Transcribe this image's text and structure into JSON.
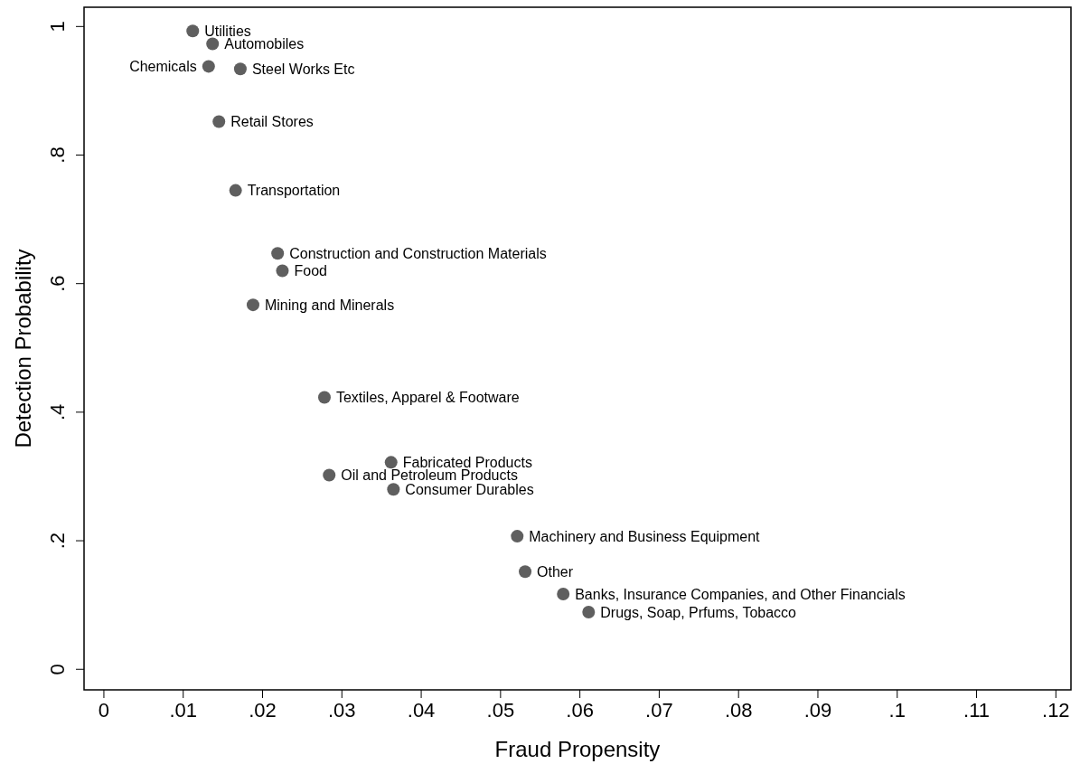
{
  "chart_data": {
    "type": "scatter",
    "xlabel": "Fraud Propensity",
    "ylabel": "Detection Probability",
    "xlim": [
      -0.0025,
      0.1219
    ],
    "ylim": [
      -0.032,
      1.03
    ],
    "xticks": [
      {
        "value": 0,
        "label": "0"
      },
      {
        "value": 0.01,
        "label": ".01"
      },
      {
        "value": 0.02,
        "label": ".02"
      },
      {
        "value": 0.03,
        "label": ".03"
      },
      {
        "value": 0.04,
        "label": ".04"
      },
      {
        "value": 0.05,
        "label": ".05"
      },
      {
        "value": 0.06,
        "label": ".06"
      },
      {
        "value": 0.07,
        "label": ".07"
      },
      {
        "value": 0.08,
        "label": ".08"
      },
      {
        "value": 0.09,
        "label": ".09"
      },
      {
        "value": 0.1,
        "label": ".1"
      },
      {
        "value": 0.11,
        "label": ".11"
      },
      {
        "value": 0.12,
        "label": ".12"
      }
    ],
    "yticks": [
      {
        "value": 0,
        "label": "0"
      },
      {
        "value": 0.2,
        "label": ".2"
      },
      {
        "value": 0.4,
        "label": ".4"
      },
      {
        "value": 0.6,
        "label": ".6"
      },
      {
        "value": 0.8,
        "label": ".8"
      },
      {
        "value": 1,
        "label": "1"
      }
    ],
    "grid": false,
    "marker": "circle",
    "series": [
      {
        "color": "#5f5f5f",
        "x": [
          0.0112,
          0.0137,
          0.0132,
          0.0172,
          0.0145,
          0.0166,
          0.0219,
          0.0225,
          0.0188,
          0.0278,
          0.0362,
          0.0284,
          0.0365,
          0.0521,
          0.0531,
          0.0579,
          0.0611
        ],
        "values": [
          0.993,
          0.973,
          0.938,
          0.934,
          0.852,
          0.745,
          0.647,
          0.62,
          0.567,
          0.423,
          0.322,
          0.302,
          0.28,
          0.207,
          0.152,
          0.117,
          0.089
        ]
      }
    ],
    "annotations": [
      {
        "text": "Utilities",
        "x": 0.0112,
        "y": 0.993
      },
      {
        "text": "Automobiles",
        "x": 0.0137,
        "y": 0.973
      },
      {
        "text": "Chemicals",
        "x": 0.0132,
        "y": 0.938
      },
      {
        "text": "Steel Works Etc",
        "x": 0.0172,
        "y": 0.934
      },
      {
        "text": "Retail Stores",
        "x": 0.0145,
        "y": 0.852
      },
      {
        "text": "Transportation",
        "x": 0.0166,
        "y": 0.745
      },
      {
        "text": "Construction and Construction Materials",
        "x": 0.0219,
        "y": 0.647
      },
      {
        "text": "Food",
        "x": 0.0225,
        "y": 0.62
      },
      {
        "text": "Mining and Minerals",
        "x": 0.0188,
        "y": 0.567
      },
      {
        "text": "Textiles, Apparel & Footware",
        "x": 0.0278,
        "y": 0.423
      },
      {
        "text": "Fabricated Products",
        "x": 0.0362,
        "y": 0.322
      },
      {
        "text": "Oil and Petroleum Products",
        "x": 0.0284,
        "y": 0.302
      },
      {
        "text": "Consumer Durables",
        "x": 0.0365,
        "y": 0.28
      },
      {
        "text": "Machinery and Business Equipment",
        "x": 0.0521,
        "y": 0.207
      },
      {
        "text": "Other",
        "x": 0.0531,
        "y": 0.152
      },
      {
        "text": "Banks, Insurance Companies, and Other Financials",
        "x": 0.0579,
        "y": 0.117
      },
      {
        "text": "Drugs, Soap, Prfums, Tobacco",
        "x": 0.0611,
        "y": 0.089
      }
    ]
  }
}
